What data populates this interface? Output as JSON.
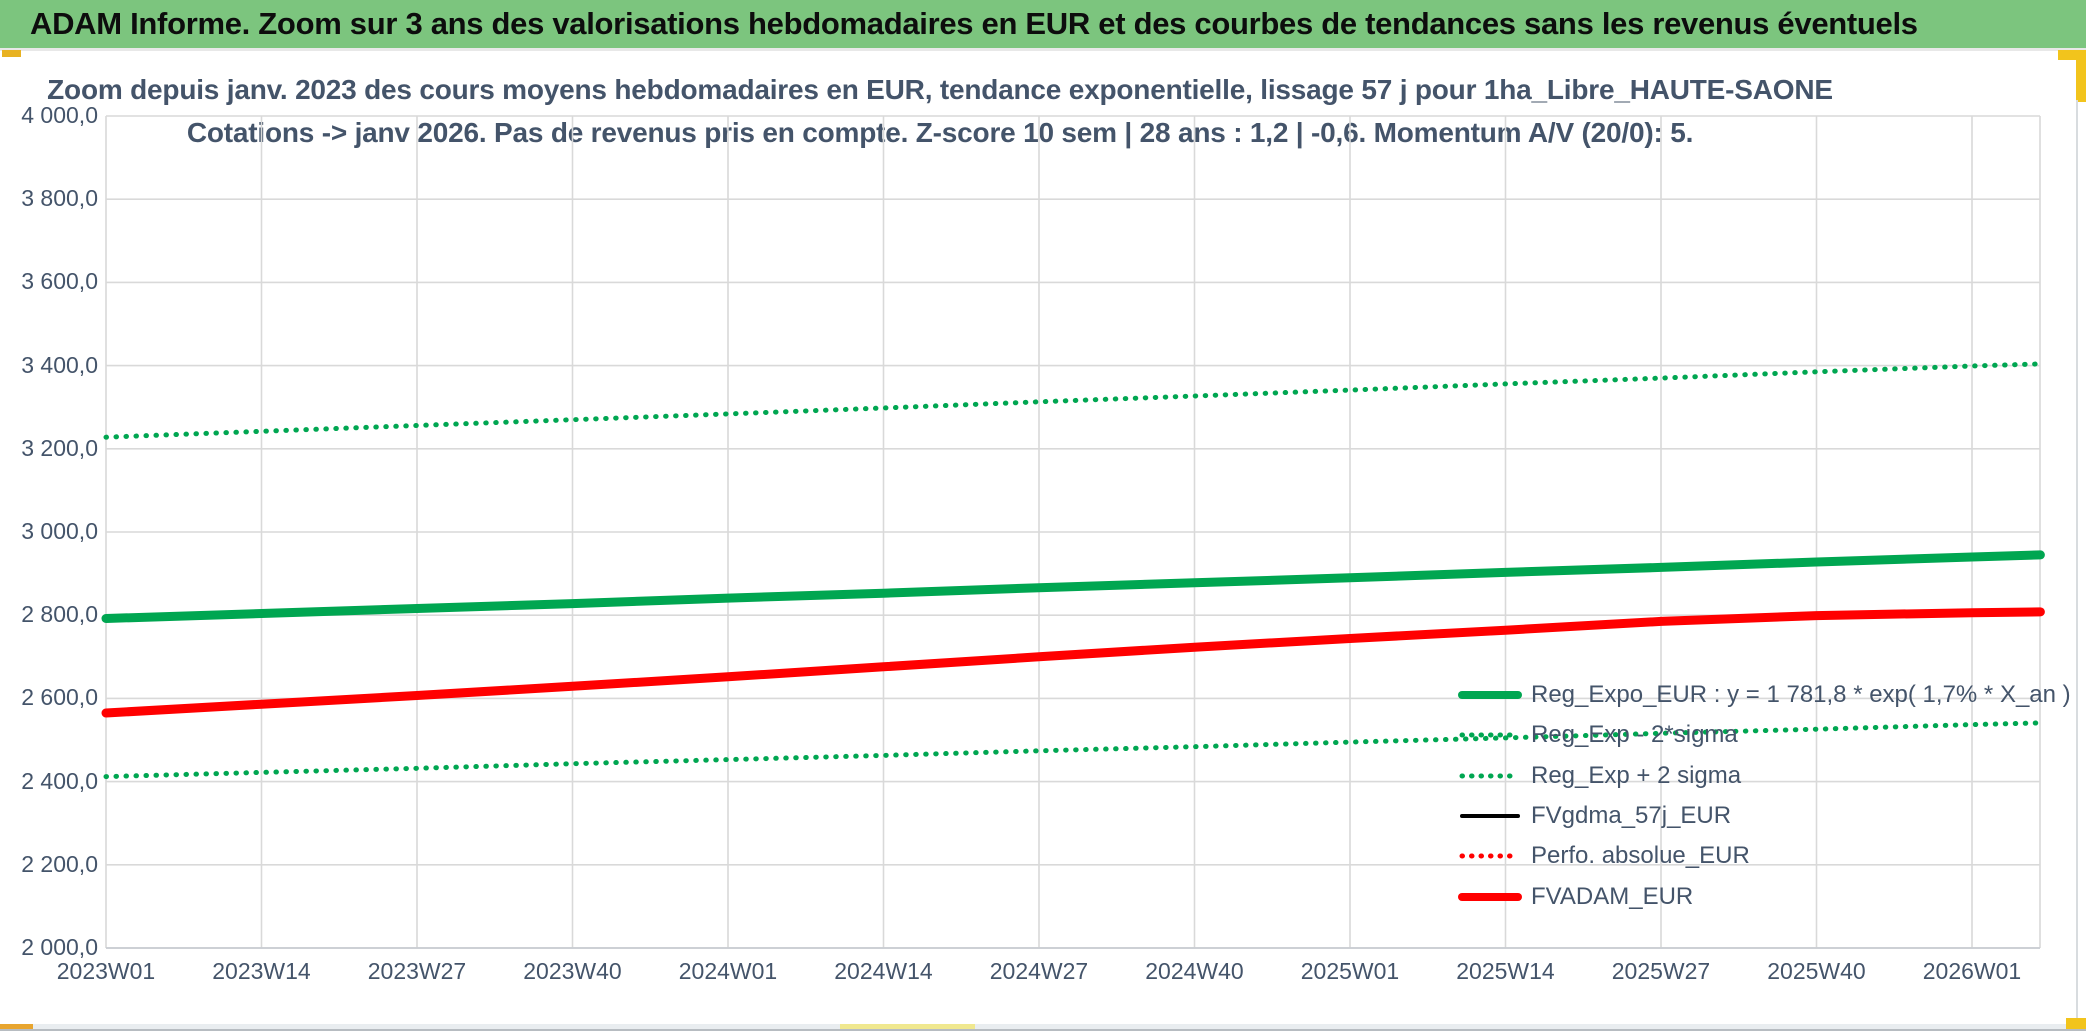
{
  "header": {
    "title": "ADAM Informe. Zoom sur 3 ans des valorisations hebdomadaires en EUR et des courbes de tendances sans les revenus éventuels",
    "bg_color": "#7CC57E"
  },
  "chart": {
    "title_line1": "Zoom depuis janv. 2023 des cours moyens hebdomadaires en EUR, tendance exponentielle, lissage 57 j pour 1ha_Libre_HAUTE-SAONE",
    "title_line2": "Cotations -> janv 2026. Pas de revenus pris en compte. Z-score 10 sem | 28 ans : 1,2 | -0,6. Momentum A/V (20/0): 5.",
    "text_color": "#44546A",
    "gridline_color": "#d9d9d9"
  },
  "accents": {
    "header_underline_yellow_left": "#E8B222",
    "corner_yellow": "#F2C41C",
    "bottom_strip_bg": "#E9EDF0",
    "bottom_left_block": "#E8A52F",
    "bottom_pale_segment": "#F0E88F",
    "bottom_hairline": "#b7bcc1",
    "right_edge_line": "#d8dcdf"
  },
  "chart_data": {
    "type": "line",
    "title": "Zoom depuis janv. 2023 des cours moyens hebdomadaires en EUR, tendance exponentielle, lissage 57 j pour 1ha_Libre_HAUTE-SAONE — Cotations -> janv 2026. Pas de revenus pris en compte. Z-score 10 sem | 28 ans : 1,2 | -0,6. Momentum A/V (20/0): 5.",
    "xlabel": "",
    "ylabel": "",
    "ylim": [
      2000,
      4000
    ],
    "y_step": 200,
    "grid": true,
    "legend_position": "inside-bottom-right",
    "y_tick_labels": [
      "4 000,0",
      "3 800,0",
      "3 600,0",
      "3 400,0",
      "3 200,0",
      "3 000,0",
      "2 800,0",
      "2 600,0",
      "2 400,0",
      "2 200,0",
      "2 000,0"
    ],
    "x_tick_labels": [
      "2023W01",
      "2023W14",
      "2023W27",
      "2023W40",
      "2024W01",
      "2024W14",
      "2024W27",
      "2024W40",
      "2025W01",
      "2025W14",
      "2025W27",
      "2025W40",
      "2026W01"
    ],
    "x_indices": [
      0,
      1,
      2,
      3,
      4,
      5,
      6,
      7,
      8,
      9,
      10,
      11,
      12,
      12.44
    ],
    "draw_order": [
      1,
      2,
      3,
      4,
      0,
      5
    ],
    "series": [
      {
        "key": "reg-expo",
        "name": "Reg_Expo_EUR : y = 1 781,8 * exp( 1,7% *  X_an )",
        "color": "#00A651",
        "style": "solid",
        "width": 9,
        "values": [
          2792,
          2804,
          2816,
          2828,
          2841,
          2853,
          2866,
          2878,
          2890,
          2903,
          2915,
          2928,
          2940,
          2945
        ]
      },
      {
        "key": "reg-exp-minus-2sigma",
        "name": "Reg_Exp - 2*sigma",
        "color": "#00A651",
        "style": "dotted",
        "width": 5,
        "values": [
          2412,
          2422,
          2432,
          2443,
          2453,
          2463,
          2474,
          2484,
          2495,
          2505,
          2516,
          2526,
          2537,
          2541
        ]
      },
      {
        "key": "reg-exp-plus-2sigma",
        "name": "Reg_Exp + 2 sigma",
        "color": "#00A651",
        "style": "dotted",
        "width": 5,
        "values": [
          3228,
          3242,
          3256,
          3270,
          3284,
          3298,
          3313,
          3327,
          3341,
          3356,
          3370,
          3385,
          3399,
          3404
        ]
      },
      {
        "key": "fvgdma-57j",
        "name": "FVgdma_57j_EUR",
        "color": "#000000",
        "style": "solid",
        "width": 4,
        "hidden_behind": "FVADAM_EUR",
        "values": [
          2565,
          2586,
          2607,
          2629,
          2652,
          2676,
          2700,
          2723,
          2744,
          2764,
          2785,
          2799,
          2806,
          2808
        ]
      },
      {
        "key": "perfo-absolue",
        "name": "Perfo. absolue_EUR",
        "color": "#FF0000",
        "style": "dotted",
        "width": 4,
        "hidden_behind": "FVADAM_EUR",
        "values": [
          2565,
          2586,
          2607,
          2629,
          2652,
          2676,
          2700,
          2723,
          2744,
          2764,
          2785,
          2799,
          2806,
          2808
        ]
      },
      {
        "key": "fvadam",
        "name": "FVADAM_EUR",
        "color": "#FF0000",
        "style": "solid",
        "width": 9,
        "values": [
          2565,
          2586,
          2607,
          2629,
          2652,
          2676,
          2700,
          2723,
          2744,
          2764,
          2785,
          2799,
          2806,
          2808
        ]
      }
    ]
  }
}
